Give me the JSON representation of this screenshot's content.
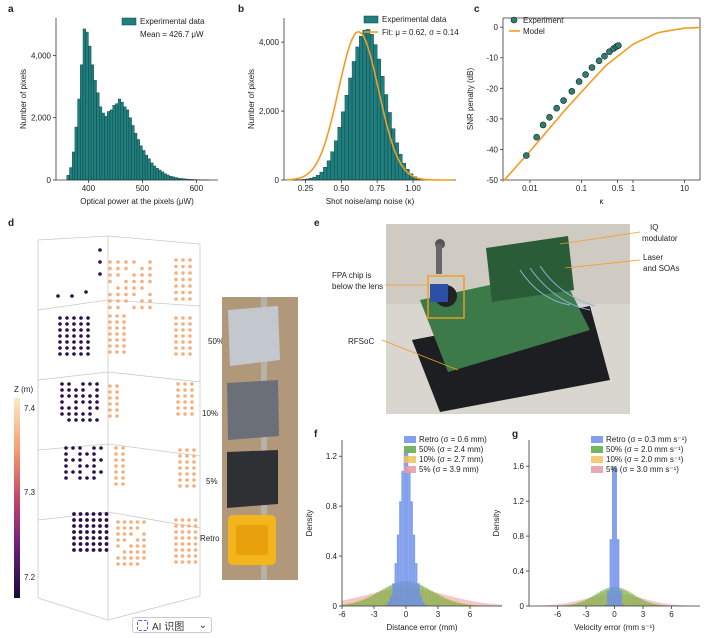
{
  "panel_labels": {
    "a": "a",
    "b": "b",
    "c": "c",
    "d": "d",
    "e": "e",
    "f": "f",
    "g": "g"
  },
  "colors": {
    "teal": "#1f7f7f",
    "orange": "#f39c21",
    "blue": "#6c8fe8",
    "green": "#5aa844",
    "yellow": "#f2c35a",
    "pink": "#e89aa6",
    "purple_dark": "#2b0f4c",
    "peach": "#f6b07c"
  },
  "photo_labels": {
    "iq": [
      "IQ",
      "modulator"
    ],
    "laser": [
      "Laser",
      "and SOAs"
    ],
    "fpa": [
      "FPA chip is",
      "below the lens"
    ],
    "rfsoc": "RFSoC"
  },
  "target_labels": [
    "50%",
    "10%",
    "5%",
    "Retro"
  ],
  "colorbar": {
    "title": "Z (m)",
    "ticks": [
      "7.4",
      "7.3",
      "7.2"
    ]
  },
  "toolbar": {
    "label": "AI 识图"
  },
  "chart_data": [
    {
      "id": "a",
      "type": "bar",
      "title": "",
      "xlabel": "Optical power at the pixels (μW)",
      "ylabel": "Number of pixels",
      "xlim": [
        340,
        640
      ],
      "ylim": [
        0,
        5200
      ],
      "xticks": [
        400,
        500,
        600
      ],
      "yticks": [
        0,
        2000,
        4000
      ],
      "ytick_labels": [
        "0",
        "2,000",
        "4,000"
      ],
      "bin_start": 360,
      "bin_width": 5,
      "values": [
        150,
        400,
        900,
        1700,
        2600,
        3700,
        4850,
        4750,
        4300,
        3700,
        3200,
        2800,
        2350,
        2150,
        2050,
        2200,
        2250,
        2400,
        2450,
        2600,
        2500,
        2350,
        2250,
        2000,
        1750,
        1500,
        1300,
        1100,
        950,
        800,
        680,
        550,
        450,
        380,
        320,
        260,
        200,
        160,
        120,
        100,
        80,
        60,
        50,
        40,
        30,
        25,
        20,
        15,
        10,
        10,
        8,
        5,
        5
      ],
      "legend": [
        {
          "label": "Experimental data",
          "kind": "bar"
        }
      ],
      "annotation": "Mean = 426.7 μW"
    },
    {
      "id": "b",
      "type": "bar",
      "title": "",
      "xlabel": "Shot noise/amp noise (κ)",
      "ylabel": "Number of pixels",
      "xlim": [
        0.1,
        1.3
      ],
      "ylim": [
        0,
        4700
      ],
      "xticks": [
        0.25,
        0.5,
        0.75,
        1.0
      ],
      "xtick_labels": [
        "0.25",
        "0.50",
        "0.75",
        "1.00"
      ],
      "yticks": [
        0,
        2000,
        4000
      ],
      "ytick_labels": [
        "0",
        "2,000",
        "4,000"
      ],
      "bin_start": 0.15,
      "bin_width": 0.025,
      "values": [
        2,
        5,
        10,
        18,
        30,
        50,
        85,
        140,
        230,
        370,
        560,
        820,
        1140,
        1530,
        1980,
        2460,
        2960,
        3440,
        3860,
        4170,
        4350,
        4370,
        4230,
        3930,
        3510,
        3010,
        2480,
        1960,
        1490,
        1080,
        750,
        490,
        310,
        180,
        100,
        55,
        28,
        13,
        6,
        3
      ],
      "fit": {
        "mu": 0.62,
        "sigma": 0.14,
        "amplitude": 4300
      },
      "legend": [
        {
          "label": "Experimental data",
          "kind": "bar"
        },
        {
          "label": "Fit: μ = 0.62, σ = 0.14",
          "kind": "line"
        }
      ]
    },
    {
      "id": "c",
      "type": "scatter",
      "title": "",
      "xlabel": "κ",
      "ylabel": "SNR penalty (dB)",
      "xscale": "log",
      "xlim": [
        0.003,
        20
      ],
      "ylim": [
        -50,
        3
      ],
      "xticks": [
        0.01,
        0.1,
        0.5,
        1,
        10
      ],
      "xtick_labels": [
        "0.01",
        "0.1",
        "0.5",
        "1",
        "10"
      ],
      "yticks": [
        0,
        -10,
        -20,
        -30,
        -40,
        -50
      ],
      "experiment_x": [
        0.0085,
        0.0135,
        0.018,
        0.024,
        0.033,
        0.045,
        0.065,
        0.09,
        0.12,
        0.16,
        0.22,
        0.28,
        0.35,
        0.42,
        0.48,
        0.52
      ],
      "experiment_y": [
        -42,
        -36,
        -32,
        -29.5,
        -26.5,
        -24,
        -21,
        -17.8,
        -15.5,
        -13.2,
        -11,
        -9.5,
        -8,
        -7,
        -6.3,
        -6
      ],
      "model_x": [
        0.003,
        0.01,
        0.05,
        0.1,
        0.3,
        1,
        3,
        10,
        20
      ],
      "model_y": [
        -50.5,
        -40.6,
        -26.8,
        -21.2,
        -12.5,
        -5.6,
        -1.8,
        -0.3,
        -0.1
      ],
      "legend": [
        {
          "label": "Experiment",
          "kind": "marker"
        },
        {
          "label": "Model",
          "kind": "line"
        }
      ]
    },
    {
      "id": "f",
      "type": "area",
      "title": "",
      "xlabel": "Distance error (mm)",
      "ylabel": "Density",
      "xlim": [
        -6,
        9
      ],
      "ylim": [
        0,
        1.33
      ],
      "xticks": [
        -6,
        -3,
        0,
        3,
        6
      ],
      "yticks": [
        0,
        0.4,
        0.8,
        1.2
      ],
      "series": [
        {
          "name": "Retro (σ = 0.6 mm)",
          "sigma": 0.6,
          "peak": 1.25,
          "color": "#6c8fe8"
        },
        {
          "name": "50% (σ = 2.4 mm)",
          "sigma": 2.4,
          "peak": 0.2,
          "color": "#5aa844"
        },
        {
          "name": "10% (σ = 2.7 mm)",
          "sigma": 2.7,
          "peak": 0.18,
          "color": "#f2c35a"
        },
        {
          "name": "5% (σ = 3.9 mm)",
          "sigma": 3.9,
          "peak": 0.14,
          "color": "#e89aa6"
        }
      ]
    },
    {
      "id": "g",
      "type": "area",
      "title": "",
      "xlabel": "Velocity error (mm s⁻¹)",
      "ylabel": "Density",
      "xlim": [
        -9,
        9
      ],
      "ylim": [
        0,
        1.9
      ],
      "xticks": [
        -6,
        -3,
        0,
        3,
        6
      ],
      "yticks": [
        0,
        0.4,
        0.8,
        1.2,
        1.6
      ],
      "series": [
        {
          "name": "Retro (σ = 0.3 mm s⁻¹)",
          "sigma": 0.3,
          "peak": 1.75,
          "color": "#6c8fe8"
        },
        {
          "name": "50% (σ = 2.0 mm s⁻¹)",
          "sigma": 2.0,
          "peak": 0.22,
          "color": "#5aa844"
        },
        {
          "name": "10% (σ = 2.0 mm s⁻¹)",
          "sigma": 2.0,
          "peak": 0.2,
          "color": "#f2c35a"
        },
        {
          "name": "5% (σ = 3.0 mm s⁻¹)",
          "sigma": 3.0,
          "peak": 0.14,
          "color": "#e89aa6"
        }
      ]
    }
  ]
}
